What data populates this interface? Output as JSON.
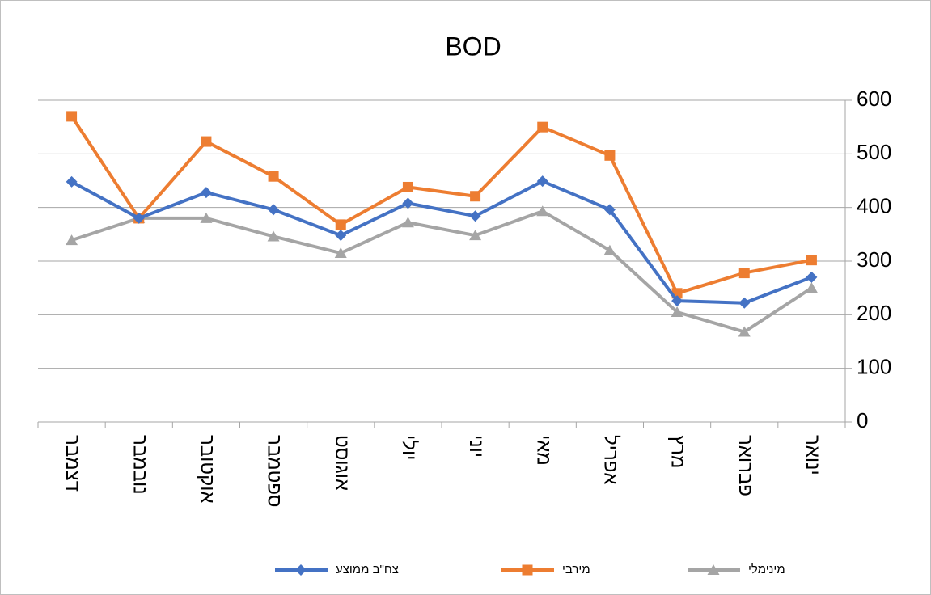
{
  "chart_data": {
    "type": "line",
    "title": "BOD",
    "categories": [
      "ינואר",
      "פברואר",
      "מרץ",
      "אפריל",
      "מאי",
      "יוני",
      "יולי",
      "אוגוסט",
      "ספטמבר",
      "אוקטובר",
      "נובמבר",
      "דצמבר"
    ],
    "x_reversed": true,
    "y_axis_side": "right",
    "series": [
      {
        "name": "צח\"ב ממוצע",
        "color": "#4472c4",
        "marker": "diamond",
        "values": [
          270,
          222,
          226,
          396,
          449,
          384,
          408,
          348,
          396,
          428,
          380,
          448
        ]
      },
      {
        "name": "מירבי",
        "color": "#ed7d31",
        "marker": "square",
        "values": [
          302,
          278,
          240,
          497,
          550,
          421,
          438,
          368,
          458,
          523,
          380,
          570
        ]
      },
      {
        "name": "מינימלי",
        "color": "#a5a5a5",
        "marker": "triangle",
        "values": [
          250,
          168,
          205,
          320,
          393,
          348,
          372,
          315,
          346,
          380,
          380,
          339
        ]
      }
    ],
    "ylim": [
      0,
      600
    ],
    "yticks": [
      0,
      100,
      200,
      300,
      400,
      500,
      600
    ],
    "grid": true,
    "legend": "bottom"
  }
}
